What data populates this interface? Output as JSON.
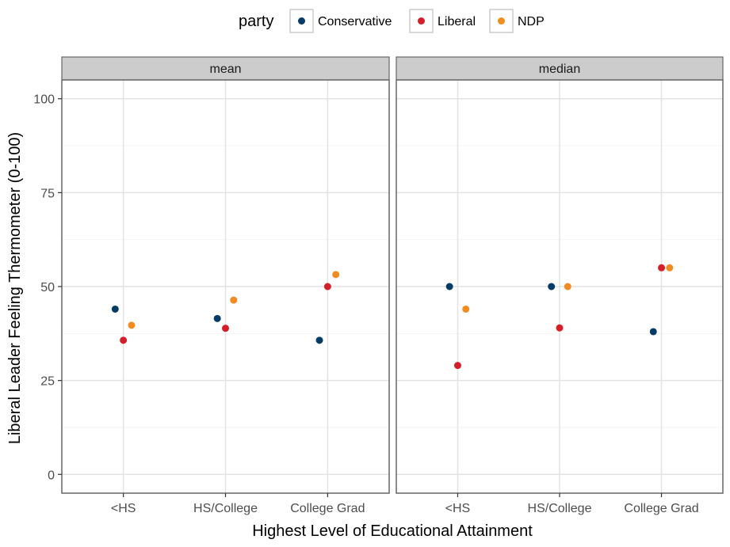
{
  "chart_data": {
    "type": "scatter",
    "facets": [
      "mean",
      "median"
    ],
    "categories": [
      "<HS",
      "HS/College",
      "College Grad"
    ],
    "xlabel": "Highest Level of Educational Attainment",
    "ylabel": "Liberal Leader Feeling Thermometer (0-100)",
    "ylim": [
      -5,
      105
    ],
    "yticks": [
      0,
      25,
      50,
      75,
      100
    ],
    "grid": true,
    "legend": {
      "title": "party",
      "position": "top"
    },
    "series": [
      {
        "name": "Conservative",
        "color": "#023B66",
        "values": {
          "mean": [
            44,
            41.5,
            35.7
          ],
          "median": [
            50,
            50,
            38
          ]
        }
      },
      {
        "name": "Liberal",
        "color": "#D51E28",
        "values": {
          "mean": [
            35.7,
            38.9,
            50
          ],
          "median": [
            29,
            39,
            55
          ]
        }
      },
      {
        "name": "NDP",
        "color": "#F28C20",
        "values": {
          "mean": [
            39.7,
            46.4,
            53.2
          ],
          "median": [
            44,
            50,
            55
          ]
        }
      }
    ]
  }
}
